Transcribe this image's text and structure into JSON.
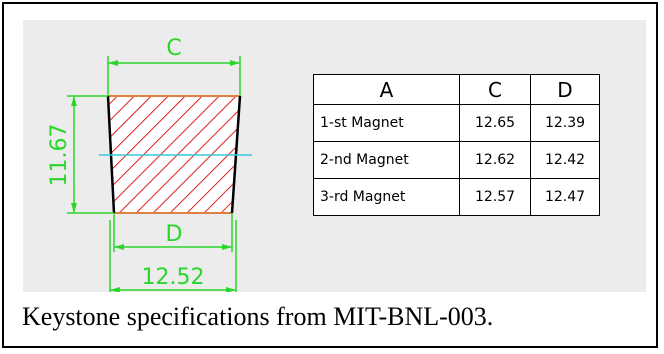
{
  "drawing": {
    "dim_top_label": "C",
    "dim_side_label": "11.67",
    "dim_bottom_inner_label": "D",
    "dim_bottom_outer_label": "12.52",
    "colors": {
      "dimension": "#2ad62a",
      "hatch": "#e02020",
      "centerline": "#38c8e0",
      "panel": "#ececec"
    }
  },
  "table": {
    "headers": [
      "A",
      "C",
      "D"
    ],
    "rows": [
      [
        "1-st Magnet",
        "12.65",
        "12.39"
      ],
      [
        "2-nd Magnet",
        "12.62",
        "12.42"
      ],
      [
        "3-rd Magnet",
        "12.57",
        "12.47"
      ]
    ]
  },
  "caption": "Keystone specifications from MIT-BNL-003."
}
